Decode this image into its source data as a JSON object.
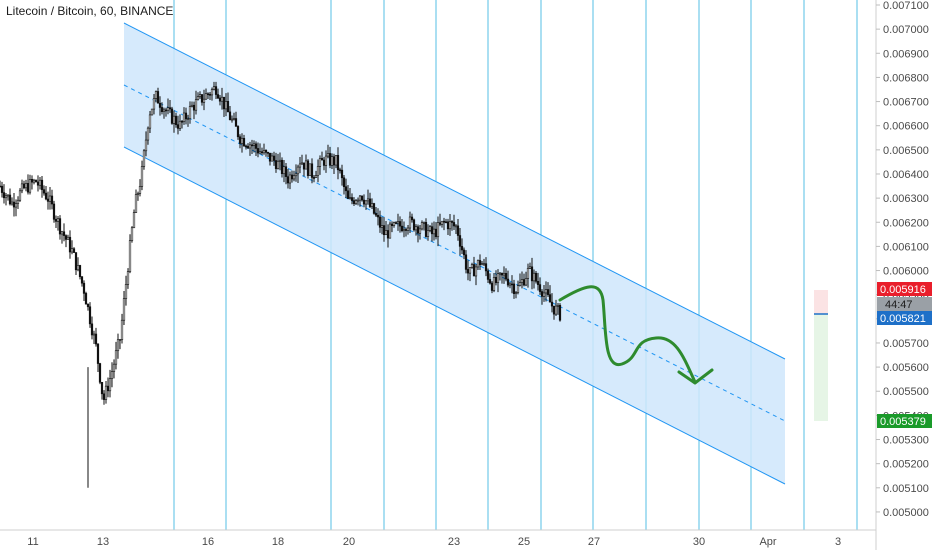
{
  "chart_data": {
    "type": "candlestick",
    "title": "Litecoin / Bitcoin, 60, BINANCE",
    "x_tick_labels": [
      "11",
      "13",
      "16",
      "18",
      "20",
      "23",
      "25",
      "27",
      "30",
      "Apr",
      "3"
    ],
    "y_range": [
      0.00495,
      0.00712
    ],
    "y_tick_labels": [
      "0.007100",
      "0.007000",
      "0.006900",
      "0.006800",
      "0.006700",
      "0.006600",
      "0.006500",
      "0.006400",
      "0.006300",
      "0.006200",
      "0.006100",
      "0.006000",
      "0.005900",
      "0.005800",
      "0.005700",
      "0.005600",
      "0.005500",
      "0.005400",
      "0.005300",
      "0.005200",
      "0.005100",
      "0.005000"
    ],
    "price_path": [
      [
        0,
        0.00635
      ],
      [
        0.5,
        0.00628
      ],
      [
        1,
        0.00634
      ],
      [
        1.5,
        0.00637
      ],
      [
        2,
        0.0063
      ],
      [
        2.5,
        0.00618
      ],
      [
        3,
        0.00608
      ],
      [
        3.5,
        0.00592
      ],
      [
        4,
        0.00568
      ],
      [
        4.3,
        0.00546
      ],
      [
        4.6,
        0.00556
      ],
      [
        5.0,
        0.00572
      ],
      [
        5.3,
        0.006
      ],
      [
        5.6,
        0.00626
      ],
      [
        5.9,
        0.0064
      ],
      [
        6.2,
        0.00665
      ],
      [
        6.5,
        0.00672
      ],
      [
        7.0,
        0.00665
      ],
      [
        7.5,
        0.0066
      ],
      [
        8.0,
        0.00668
      ],
      [
        8.5,
        0.00672
      ],
      [
        9.0,
        0.00676
      ],
      [
        9.5,
        0.00665
      ],
      [
        10.0,
        0.00655
      ],
      [
        10.5,
        0.00652
      ],
      [
        11.0,
        0.00648
      ],
      [
        11.5,
        0.00645
      ],
      [
        12.0,
        0.00638
      ],
      [
        12.5,
        0.00646
      ],
      [
        13.0,
        0.0064
      ],
      [
        13.5,
        0.00646
      ],
      [
        14.0,
        0.00645
      ],
      [
        14.5,
        0.00628
      ],
      [
        15.0,
        0.00632
      ],
      [
        15.5,
        0.00625
      ],
      [
        16.0,
        0.00615
      ],
      [
        16.5,
        0.00618
      ],
      [
        17.0,
        0.0062
      ],
      [
        17.5,
        0.00618
      ],
      [
        18.0,
        0.00615
      ],
      [
        18.5,
        0.0062
      ],
      [
        19.0,
        0.00618
      ],
      [
        19.5,
        0.00598
      ],
      [
        20.0,
        0.00604
      ],
      [
        20.5,
        0.00594
      ],
      [
        21.0,
        0.00598
      ],
      [
        21.5,
        0.00592
      ],
      [
        22.0,
        0.006
      ],
      [
        22.5,
        0.00593
      ],
      [
        23.0,
        0.00585
      ],
      [
        23.3,
        0.00582
      ]
    ],
    "last_price": 0.005821,
    "price_tags": [
      {
        "value": "0.005916",
        "color": "#e91e2b"
      },
      {
        "value": "44:47",
        "color": "#9aa0a6",
        "text_color": "#1b1b1b"
      },
      {
        "value": "0.005821",
        "color": "#1e70c8"
      },
      {
        "value": "0.005379",
        "color": "#1a9a2a"
      }
    ],
    "channel_color": "#2196f3",
    "channel_fill": "#cfe6fb",
    "projection_color": "#2e8b2e",
    "grid": false
  }
}
